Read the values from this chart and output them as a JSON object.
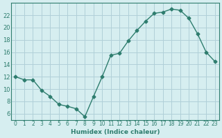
{
  "x": [
    0,
    1,
    2,
    3,
    4,
    5,
    6,
    7,
    8,
    9,
    10,
    11,
    12,
    13,
    14,
    15,
    16,
    17,
    18,
    19,
    20,
    21,
    22,
    23
  ],
  "y": [
    12,
    11.5,
    11.5,
    9.8,
    8.8,
    7.5,
    7.2,
    6.8,
    5.5,
    8.8,
    12.0,
    15.5,
    15.8,
    17.8,
    19.5,
    21.0,
    22.3,
    22.5,
    23.0,
    22.8,
    21.5,
    19.0,
    16.0,
    14.5
  ],
  "last_y": 13.0,
  "line_color": "#2e7d6e",
  "marker_color": "#2e7d6e",
  "bg_color": "#d6eef0",
  "grid_color": "#b0d0d8",
  "xlabel": "Humidex (Indice chaleur)",
  "ylabel_ticks": [
    6,
    8,
    10,
    12,
    14,
    16,
    18,
    20,
    22
  ],
  "ylim": [
    5,
    24
  ],
  "xlim": [
    -0.5,
    23.5
  ],
  "xtick_labels": [
    "0",
    "1",
    "2",
    "3",
    "4",
    "5",
    "6",
    "7",
    "8",
    "9",
    "10",
    "11",
    "12",
    "13",
    "14",
    "15",
    "16",
    "17",
    "18",
    "19",
    "20",
    "21",
    "22",
    "23"
  ]
}
